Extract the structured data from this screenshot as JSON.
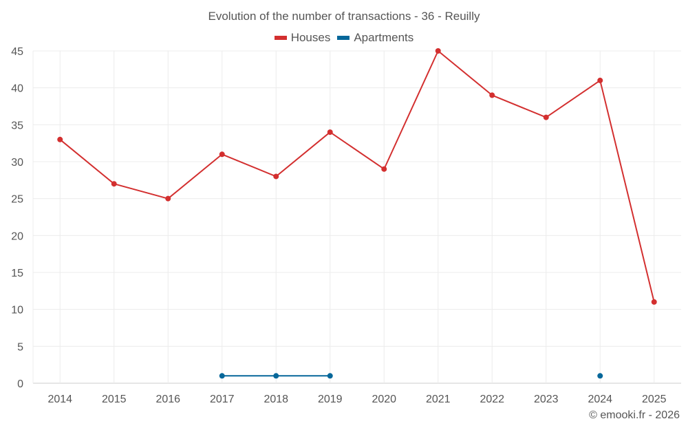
{
  "chart_data": {
    "type": "line",
    "title": "Evolution of the number of transactions - 36 - Reuilly",
    "categories": [
      "2014",
      "2015",
      "2016",
      "2017",
      "2018",
      "2019",
      "2020",
      "2021",
      "2022",
      "2023",
      "2024",
      "2025"
    ],
    "series": [
      {
        "name": "Houses",
        "color": "#d32f2f",
        "values": [
          33,
          27,
          25,
          31,
          28,
          34,
          29,
          45,
          39,
          36,
          41,
          11
        ]
      },
      {
        "name": "Apartments",
        "color": "#06679a",
        "values": [
          null,
          null,
          null,
          1,
          1,
          1,
          null,
          null,
          null,
          null,
          1,
          null
        ]
      }
    ],
    "xlabel": "",
    "ylabel": "",
    "ylim": [
      0,
      45
    ],
    "yticks": [
      0,
      5,
      10,
      15,
      20,
      25,
      30,
      35,
      40,
      45
    ],
    "grid": true,
    "legend_position": "top-center"
  },
  "watermark": "© emooki.fr - 2026"
}
